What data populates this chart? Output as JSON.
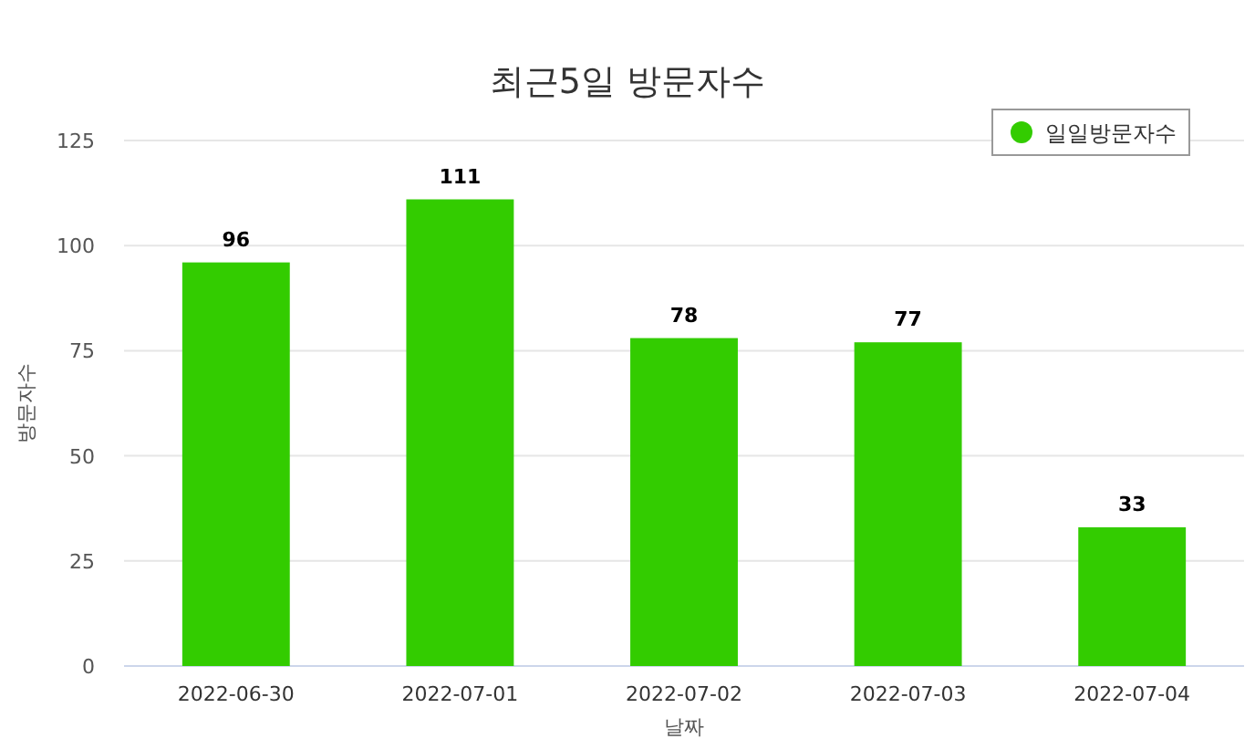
{
  "chart_data": {
    "type": "bar",
    "title": "최근5일 방문자수",
    "xlabel": "날짜",
    "ylabel": "방문자수",
    "categories": [
      "2022-06-30",
      "2022-07-01",
      "2022-07-02",
      "2022-07-03",
      "2022-07-04"
    ],
    "series": [
      {
        "name": "일일방문자수",
        "color": "#33cc00",
        "values": [
          96,
          111,
          78,
          77,
          33
        ]
      }
    ],
    "ylim": [
      0,
      125
    ],
    "yticks": [
      0,
      25,
      50,
      75,
      100,
      125
    ],
    "grid": "y",
    "legend": "top right",
    "data_labels": true
  }
}
